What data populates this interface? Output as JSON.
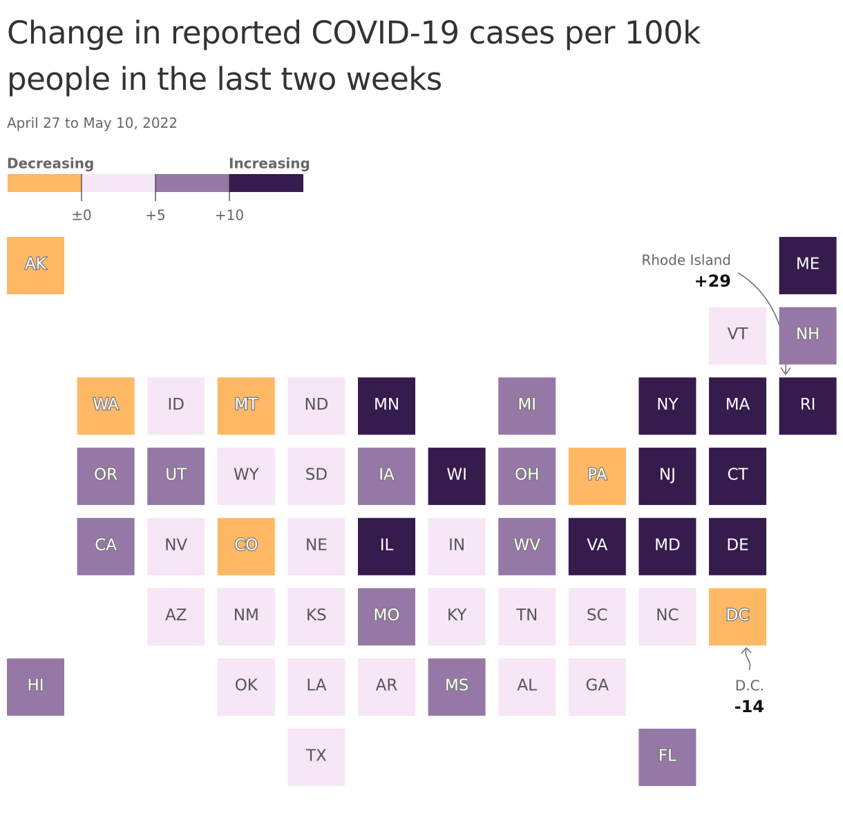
{
  "chart_data": {
    "type": "tilemap",
    "title": "Change in reported COVID-19 cases per 100k people in the last two weeks",
    "subtitle": "April 27 to May 10, 2022",
    "legend": {
      "low_label": "Decreasing",
      "high_label": "Increasing",
      "colors": [
        "#ffb866",
        "#f6e6f6",
        "#9678a6",
        "#361b4d"
      ],
      "ticks": [
        {
          "value": 0,
          "label": "±0"
        },
        {
          "value": 5,
          "label": "+5"
        },
        {
          "value": 10,
          "label": "+10"
        }
      ]
    },
    "tiles": [
      {
        "label": "AK",
        "color": "#ffb866"
      },
      {
        "label": "ME",
        "color": "#361b4d"
      },
      {
        "label": "VT",
        "color": "#f6e6f6"
      },
      {
        "label": "NH",
        "color": "#9678a6"
      },
      {
        "label": "WA",
        "color": "#ffb866"
      },
      {
        "label": "ID",
        "color": "#f6e6f6"
      },
      {
        "label": "MT",
        "color": "#ffb866"
      },
      {
        "label": "ND",
        "color": "#f6e6f6"
      },
      {
        "label": "MN",
        "color": "#361b4d"
      },
      {
        "label": "MI",
        "color": "#9678a6"
      },
      {
        "label": "NY",
        "color": "#361b4d"
      },
      {
        "label": "MA",
        "color": "#361b4d"
      },
      {
        "label": "RI",
        "color": "#361b4d"
      },
      {
        "label": "OR",
        "color": "#9678a6"
      },
      {
        "label": "UT",
        "color": "#9678a6"
      },
      {
        "label": "WY",
        "color": "#f6e6f6"
      },
      {
        "label": "SD",
        "color": "#f6e6f6"
      },
      {
        "label": "IA",
        "color": "#9678a6"
      },
      {
        "label": "WI",
        "color": "#361b4d"
      },
      {
        "label": "OH",
        "color": "#9678a6"
      },
      {
        "label": "PA",
        "color": "#ffb866"
      },
      {
        "label": "NJ",
        "color": "#361b4d"
      },
      {
        "label": "CT",
        "color": "#361b4d"
      },
      {
        "label": "CA",
        "color": "#9678a6"
      },
      {
        "label": "NV",
        "color": "#f6e6f6"
      },
      {
        "label": "CO",
        "color": "#ffb866"
      },
      {
        "label": "NE",
        "color": "#f6e6f6"
      },
      {
        "label": "IL",
        "color": "#361b4d"
      },
      {
        "label": "IN",
        "color": "#f6e6f6"
      },
      {
        "label": "WV",
        "color": "#9678a6"
      },
      {
        "label": "VA",
        "color": "#361b4d"
      },
      {
        "label": "MD",
        "color": "#361b4d"
      },
      {
        "label": "DE",
        "color": "#361b4d"
      },
      {
        "label": "AZ",
        "color": "#f6e6f6"
      },
      {
        "label": "NM",
        "color": "#f6e6f6"
      },
      {
        "label": "KS",
        "color": "#f6e6f6"
      },
      {
        "label": "MO",
        "color": "#9678a6"
      },
      {
        "label": "KY",
        "color": "#f6e6f6"
      },
      {
        "label": "TN",
        "color": "#f6e6f6"
      },
      {
        "label": "SC",
        "color": "#f6e6f6"
      },
      {
        "label": "NC",
        "color": "#f6e6f6"
      },
      {
        "label": "DC",
        "color": "#ffb866"
      },
      {
        "label": "HI",
        "color": "#9678a6"
      },
      {
        "label": "OK",
        "color": "#f6e6f6"
      },
      {
        "label": "LA",
        "color": "#f6e6f6"
      },
      {
        "label": "AR",
        "color": "#f6e6f6"
      },
      {
        "label": "MS",
        "color": "#9678a6"
      },
      {
        "label": "AL",
        "color": "#f6e6f6"
      },
      {
        "label": "GA",
        "color": "#f6e6f6"
      },
      {
        "label": "TX",
        "color": "#f6e6f6"
      },
      {
        "label": "FL",
        "color": "#9678a6"
      }
    ],
    "annotations": [
      {
        "label": "Rhode Island",
        "value": "+29"
      },
      {
        "label": "D.C.",
        "value": "-14"
      }
    ]
  }
}
